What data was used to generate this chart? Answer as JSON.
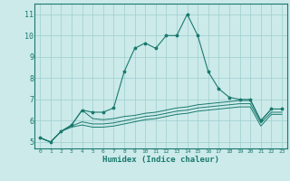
{
  "xlabel": "Humidex (Indice chaleur)",
  "x": [
    0,
    1,
    2,
    3,
    4,
    5,
    6,
    7,
    8,
    9,
    10,
    11,
    12,
    13,
    14,
    15,
    16,
    17,
    18,
    19,
    20,
    21,
    22,
    23
  ],
  "line1": [
    5.2,
    5.0,
    5.5,
    5.8,
    6.5,
    6.4,
    6.4,
    6.6,
    8.3,
    9.4,
    9.65,
    9.4,
    10.0,
    10.0,
    11.0,
    10.0,
    8.3,
    7.5,
    7.1,
    7.0,
    7.0,
    6.0,
    6.55,
    6.55
  ],
  "line2": [
    5.2,
    5.0,
    5.5,
    5.8,
    6.5,
    6.1,
    6.05,
    6.1,
    6.2,
    6.25,
    6.35,
    6.4,
    6.5,
    6.6,
    6.65,
    6.75,
    6.8,
    6.85,
    6.9,
    6.95,
    6.95,
    6.0,
    6.55,
    6.55
  ],
  "line3": [
    5.2,
    5.0,
    5.5,
    5.75,
    5.95,
    5.85,
    5.85,
    5.9,
    6.0,
    6.1,
    6.2,
    6.25,
    6.35,
    6.45,
    6.5,
    6.6,
    6.65,
    6.7,
    6.75,
    6.8,
    6.8,
    5.9,
    6.4,
    6.4
  ],
  "line4": [
    5.2,
    5.0,
    5.5,
    5.7,
    5.8,
    5.7,
    5.7,
    5.75,
    5.85,
    5.95,
    6.05,
    6.1,
    6.2,
    6.3,
    6.35,
    6.45,
    6.5,
    6.55,
    6.6,
    6.65,
    6.65,
    5.75,
    6.3,
    6.3
  ],
  "color": "#1a7a6e",
  "bg_color": "#cceaea",
  "grid_color": "#9ecece",
  "ylim": [
    4.7,
    11.5
  ],
  "xlim": [
    -0.5,
    23.5
  ],
  "yticks": [
    5,
    6,
    7,
    8,
    9,
    10,
    11
  ],
  "xticks": [
    0,
    1,
    2,
    3,
    4,
    5,
    6,
    7,
    8,
    9,
    10,
    11,
    12,
    13,
    14,
    15,
    16,
    17,
    18,
    19,
    20,
    21,
    22,
    23
  ]
}
